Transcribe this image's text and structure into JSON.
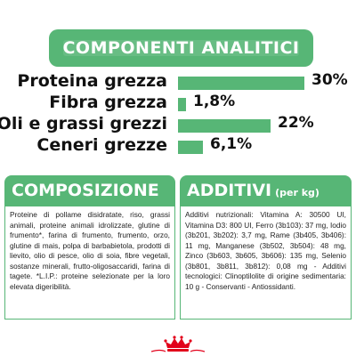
{
  "banner": {
    "title": "COMPONENTI ANALITICI"
  },
  "components": [
    {
      "label": "Proteina grezza",
      "value": "30%",
      "fraction": 1.0
    },
    {
      "label": "Fibra grezza",
      "value": "1,8%",
      "fraction": 0.06
    },
    {
      "label": "Oli e grassi grezzi",
      "value": "22%",
      "fraction": 0.73
    },
    {
      "label": "Ceneri grezze",
      "value": "6,1%",
      "fraction": 0.2
    }
  ],
  "composizione": {
    "title": "COMPOSIZIONE",
    "text": "Proteine di pollame disidratate, riso, grassi animali, proteine animali idrolizzate, glutine di frumento*, farina di frumento, frumento, orzo, glutine di mais, polpa di barbabietola, prodotti di lievito, olio di pesce, olio di soia, fibre vegetali, sostanze minerali, frutto-oligosaccaridi, farina di tagete. *L.I.P.: proteine selezionate per la loro elevata digeribilità."
  },
  "additivi": {
    "title": "ADDITIVI",
    "suffix": "(per kg)",
    "text": "Additivi nutrizionali: Vitamina A: 30500 UI, Vitamina D3: 800 UI, Ferro (3b103): 37 mg, Iodio (3b201, 3b202): 3,7 mg, Rame (3b405, 3b406): 11 mg, Manganese (3b502, 3b504): 48 mg, Zinco (3b603, 3b605, 3b606): 135 mg, Selenio (3b801, 3b811, 3b812): 0,08 mg - Additivi tecnologici: Clinoptilolite di origine sedimentaria: 10 g - Conservanti - Antiossidanti."
  },
  "colors": {
    "accent": "#57b676",
    "logo": "#e2001a"
  },
  "logo": {
    "icon": "crown-icon"
  }
}
